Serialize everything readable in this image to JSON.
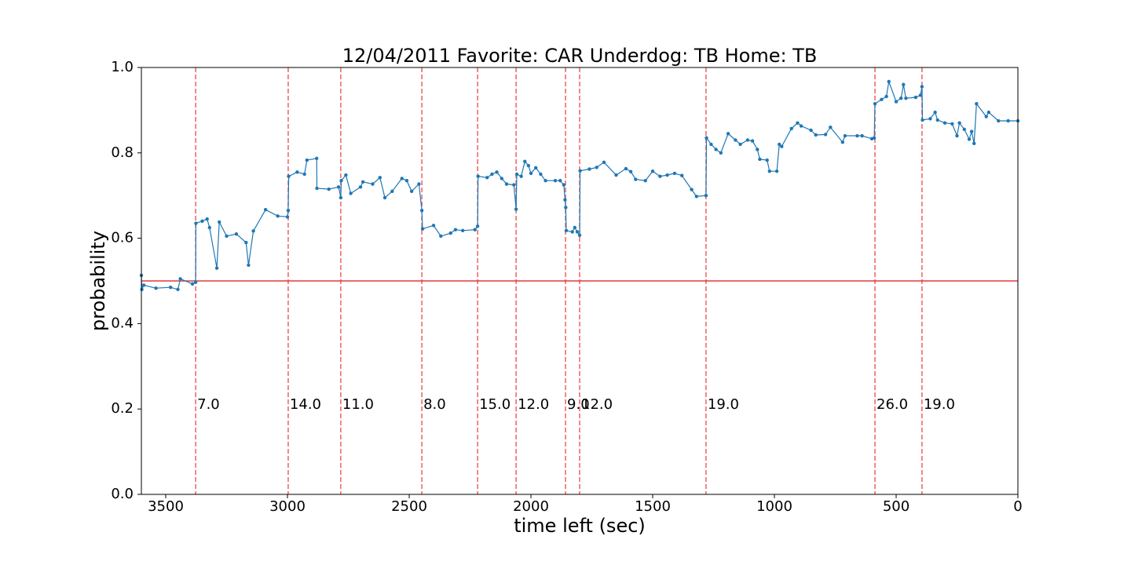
{
  "chart_data": {
    "type": "line",
    "title": "12/04/2011 Favorite: CAR Underdog: TB Home: TB",
    "x_label": "time left (sec)",
    "y_label": "probability",
    "xlim": [
      3600,
      0
    ],
    "ylim": [
      0,
      1
    ],
    "xticks": [
      3500,
      3000,
      2500,
      2000,
      1500,
      1000,
      500,
      0
    ],
    "yticks": [
      {
        "value": 0,
        "label": "0.0"
      },
      0.2,
      0.4,
      0.6,
      0.8,
      {
        "value": 1,
        "label": "1.0"
      }
    ],
    "color": "#1f77b4",
    "hline": 0.5,
    "hline_color": "#e03a3a",
    "event_color": "#f06060",
    "x": [
      3600,
      3598,
      3590,
      3540,
      3480,
      3450,
      3440,
      3390,
      3377,
      3376,
      3350,
      3330,
      3320,
      3290,
      3280,
      3250,
      3210,
      3170,
      3160,
      3140,
      3090,
      3040,
      3000,
      2997,
      2995,
      2960,
      2930,
      2920,
      2880,
      2879,
      2830,
      2790,
      2781,
      2779,
      2760,
      2740,
      2700,
      2690,
      2650,
      2620,
      2600,
      2570,
      2530,
      2510,
      2490,
      2460,
      2448,
      2445,
      2400,
      2370,
      2330,
      2310,
      2280,
      2230,
      2219,
      2217,
      2180,
      2160,
      2140,
      2120,
      2100,
      2070,
      2061,
      2058,
      2040,
      2025,
      2010,
      2000,
      1980,
      1960,
      1940,
      1900,
      1880,
      1865,
      1860,
      1857,
      1855,
      1830,
      1820,
      1810,
      1800,
      1798,
      1760,
      1730,
      1700,
      1650,
      1610,
      1590,
      1570,
      1530,
      1500,
      1470,
      1440,
      1410,
      1380,
      1340,
      1320,
      1281,
      1279,
      1260,
      1240,
      1220,
      1190,
      1160,
      1140,
      1110,
      1090,
      1070,
      1060,
      1030,
      1020,
      990,
      980,
      970,
      930,
      905,
      890,
      850,
      830,
      790,
      770,
      720,
      710,
      660,
      640,
      600,
      590,
      587,
      560,
      540,
      530,
      500,
      480,
      470,
      460,
      420,
      400,
      394,
      392,
      360,
      340,
      330,
      300,
      270,
      250,
      240,
      220,
      200,
      190,
      180,
      170,
      130,
      120,
      80,
      40,
      0
    ],
    "values": [
      0.513,
      0.48,
      0.49,
      0.483,
      0.485,
      0.48,
      0.505,
      0.493,
      0.497,
      0.635,
      0.64,
      0.645,
      0.625,
      0.53,
      0.638,
      0.605,
      0.61,
      0.59,
      0.537,
      0.617,
      0.667,
      0.652,
      0.65,
      0.665,
      0.745,
      0.755,
      0.75,
      0.783,
      0.787,
      0.717,
      0.715,
      0.72,
      0.695,
      0.735,
      0.748,
      0.705,
      0.72,
      0.732,
      0.727,
      0.742,
      0.695,
      0.71,
      0.74,
      0.735,
      0.71,
      0.727,
      0.665,
      0.622,
      0.63,
      0.605,
      0.612,
      0.62,
      0.618,
      0.62,
      0.628,
      0.745,
      0.742,
      0.75,
      0.755,
      0.74,
      0.727,
      0.725,
      0.668,
      0.75,
      0.745,
      0.78,
      0.77,
      0.752,
      0.765,
      0.75,
      0.735,
      0.735,
      0.735,
      0.725,
      0.69,
      0.672,
      0.618,
      0.615,
      0.625,
      0.615,
      0.607,
      0.758,
      0.762,
      0.766,
      0.778,
      0.748,
      0.763,
      0.756,
      0.738,
      0.735,
      0.757,
      0.745,
      0.748,
      0.752,
      0.747,
      0.714,
      0.698,
      0.7,
      0.835,
      0.82,
      0.808,
      0.8,
      0.845,
      0.83,
      0.82,
      0.83,
      0.828,
      0.808,
      0.785,
      0.783,
      0.757,
      0.757,
      0.82,
      0.815,
      0.857,
      0.87,
      0.863,
      0.853,
      0.842,
      0.843,
      0.86,
      0.825,
      0.84,
      0.84,
      0.84,
      0.833,
      0.835,
      0.915,
      0.925,
      0.932,
      0.967,
      0.92,
      0.928,
      0.96,
      0.928,
      0.93,
      0.935,
      0.955,
      0.877,
      0.88,
      0.895,
      0.877,
      0.87,
      0.868,
      0.84,
      0.87,
      0.855,
      0.832,
      0.85,
      0.822,
      0.915,
      0.885,
      0.895,
      0.875,
      0.875,
      0.875
    ],
    "events": [
      {
        "x": 3377,
        "label": "7.0"
      },
      {
        "x": 2997,
        "label": "14.0"
      },
      {
        "x": 2781,
        "label": "11.0"
      },
      {
        "x": 2448,
        "label": "8.0"
      },
      {
        "x": 2219,
        "label": "15.0"
      },
      {
        "x": 2061,
        "label": "12.0"
      },
      {
        "x": 1858,
        "label": "9.0"
      },
      {
        "x": 1800,
        "label": "12.0"
      },
      {
        "x": 1281,
        "label": "19.0"
      },
      {
        "x": 587,
        "label": "26.0"
      },
      {
        "x": 394,
        "label": "19.0"
      }
    ]
  }
}
